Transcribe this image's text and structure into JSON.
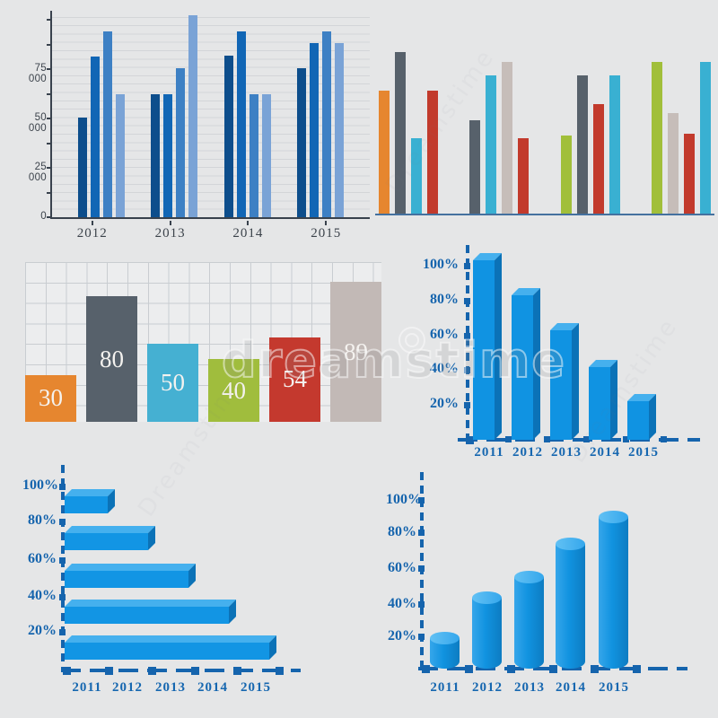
{
  "watermark": {
    "text": "dreamstime",
    "tile_text": "Dreamstime"
  },
  "palette": {
    "background": "#e5e6e7",
    "axis_dark": "#39424d",
    "axis_blue": "#1564ad",
    "label_blue": "#1667b0",
    "bar3d_front": "#1093e2",
    "bar3d_top": "#45b0ee",
    "bar3d_side": "#0b72b7",
    "orange": "#e6862f",
    "slate": "#57616b",
    "cyan": "#39b0d2",
    "red": "#c23a2c",
    "taupe": "#c6bdb9",
    "olive": "#a1bf3a"
  },
  "chart_data": [
    {
      "id": "grouped-bars-blue",
      "type": "bar",
      "position": "top-left",
      "categories": [
        "2012",
        "2013",
        "2014",
        "2015"
      ],
      "series": [
        {
          "name": "series-1",
          "color": "#0d4e8c",
          "values": [
            50500,
            62500,
            82000,
            75500
          ]
        },
        {
          "name": "series-2",
          "color": "#1166b5",
          "values": [
            81500,
            62500,
            94000,
            88000
          ]
        },
        {
          "name": "series-3",
          "color": "#3d80c4",
          "values": [
            94000,
            75500,
            62500,
            94000
          ]
        },
        {
          "name": "series-4",
          "color": "#7aa3d6",
          "values": [
            62500,
            102500,
            62500,
            88000
          ]
        }
      ],
      "ylim": [
        0,
        100000
      ],
      "yticks": [
        {
          "label": "75 000",
          "value": 75000
        },
        {
          "label": "50 000",
          "value": 50000
        },
        {
          "label": "25 000",
          "value": 25000
        },
        {
          "label": "0",
          "value": 0
        }
      ],
      "grid": "horizontal",
      "legend": "none"
    },
    {
      "id": "grouped-bars-multicolor",
      "type": "bar",
      "position": "top-right",
      "unit": "percent",
      "ylim": [
        0,
        100
      ],
      "groups": [
        [
          {
            "color": "#e6862f",
            "value": 72
          },
          {
            "color": "#57616b",
            "value": 95
          },
          {
            "color": "#39b0d2",
            "value": 44
          },
          {
            "color": "#c23a2c",
            "value": 72
          }
        ],
        [
          {
            "color": "#57616b",
            "value": 55
          },
          {
            "color": "#39b0d2",
            "value": 81
          },
          {
            "color": "#c6bdb9",
            "value": 89
          },
          {
            "color": "#c23a2c",
            "value": 44
          }
        ],
        [
          {
            "color": "#a1bf3a",
            "value": 46
          },
          {
            "color": "#57616b",
            "value": 81
          },
          {
            "color": "#c23a2c",
            "value": 64
          },
          {
            "color": "#39b0d2",
            "value": 81
          }
        ],
        [
          {
            "color": "#a1bf3a",
            "value": 89
          },
          {
            "color": "#c6bdb9",
            "value": 59
          },
          {
            "color": "#c23a2c",
            "value": 47
          },
          {
            "color": "#39b0d2",
            "value": 89
          }
        ]
      ],
      "baseline_color": "#44719f",
      "legend": "none"
    },
    {
      "id": "value-labeled-bars",
      "type": "bar",
      "position": "middle-left",
      "values": [
        30,
        80,
        50,
        40,
        54,
        89
      ],
      "labels": [
        "30",
        "80",
        "50",
        "40",
        "54",
        "89"
      ],
      "colors": [
        "#e6862f",
        "#57616b",
        "#45b0d2",
        "#a0bd3d",
        "#c4392e",
        "#c2b9b6"
      ],
      "ylim": [
        0,
        100
      ],
      "grid": "square"
    },
    {
      "id": "bars-3d-descending",
      "type": "bar",
      "position": "middle-right",
      "categories": [
        "2011",
        "2012",
        "2013",
        "2014",
        "2015"
      ],
      "values": [
        103,
        83,
        63,
        42,
        22
      ],
      "unit": "percent",
      "yticks": [
        "100%",
        "80%",
        "60%",
        "40%",
        "20%"
      ],
      "ylim": [
        0,
        110
      ],
      "bar_color": "#1093e2",
      "style": "3d-box"
    },
    {
      "id": "bars-3d-horizontal",
      "type": "bar",
      "position": "bottom-left",
      "orientation": "horizontal",
      "x_labels": [
        "2011",
        "2012",
        "2013",
        "2014",
        "2015"
      ],
      "yticks": [
        "100%",
        "80%",
        "60%",
        "40%",
        "20%"
      ],
      "bar_levels_pct": [
        90,
        70,
        50,
        30,
        10
      ],
      "bar_lengths_pct": [
        20,
        40,
        60,
        80,
        97
      ],
      "bar_color": "#1093e2",
      "style": "3d-box"
    },
    {
      "id": "cylinders-ascending",
      "type": "bar",
      "position": "bottom-right",
      "categories": [
        "2011",
        "2012",
        "2013",
        "2014",
        "2015"
      ],
      "values": [
        18,
        42,
        54,
        74,
        90
      ],
      "unit": "percent",
      "yticks": [
        "100%",
        "80%",
        "60%",
        "40%",
        "20%"
      ],
      "ylim": [
        0,
        110
      ],
      "bar_color": "#1093e2",
      "style": "3d-cylinder"
    }
  ]
}
